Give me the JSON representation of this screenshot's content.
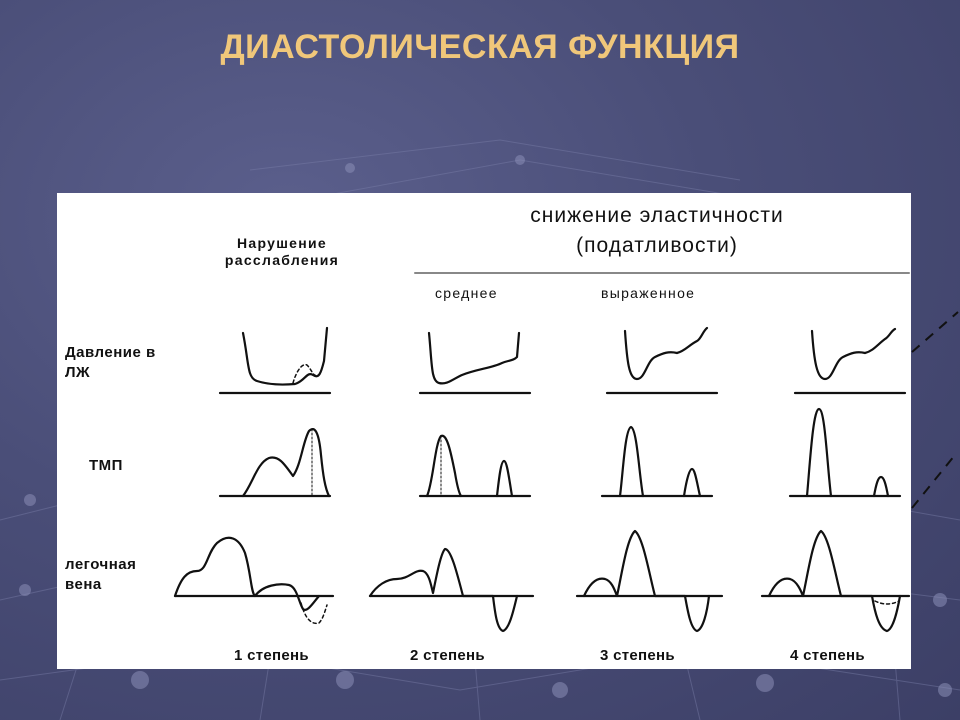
{
  "slide_title": "ДИАСТОЛИЧЕСКАЯ ФУНКЦИЯ",
  "figure": {
    "header_main_line1": "снижение эластичности",
    "header_main_line2": "(податливости)",
    "header_relax_line1": "Нарушение",
    "header_relax_line2": "расслабления",
    "sub_moderate": "среднее",
    "sub_severe": "выраженное",
    "row_pressure_line1": "Давление в",
    "row_pressure_line2": "ЛЖ",
    "row_tmp": "ТМП",
    "row_vein_line1": "легочная",
    "row_vein_line2": "вена",
    "degrees": [
      "1 степень",
      "2 степень",
      "3 степень",
      "4 степень"
    ]
  },
  "colors": {
    "title": "#f0c77a",
    "background": "#4a4e78",
    "panel": "#ffffff",
    "stroke": "#111111"
  }
}
